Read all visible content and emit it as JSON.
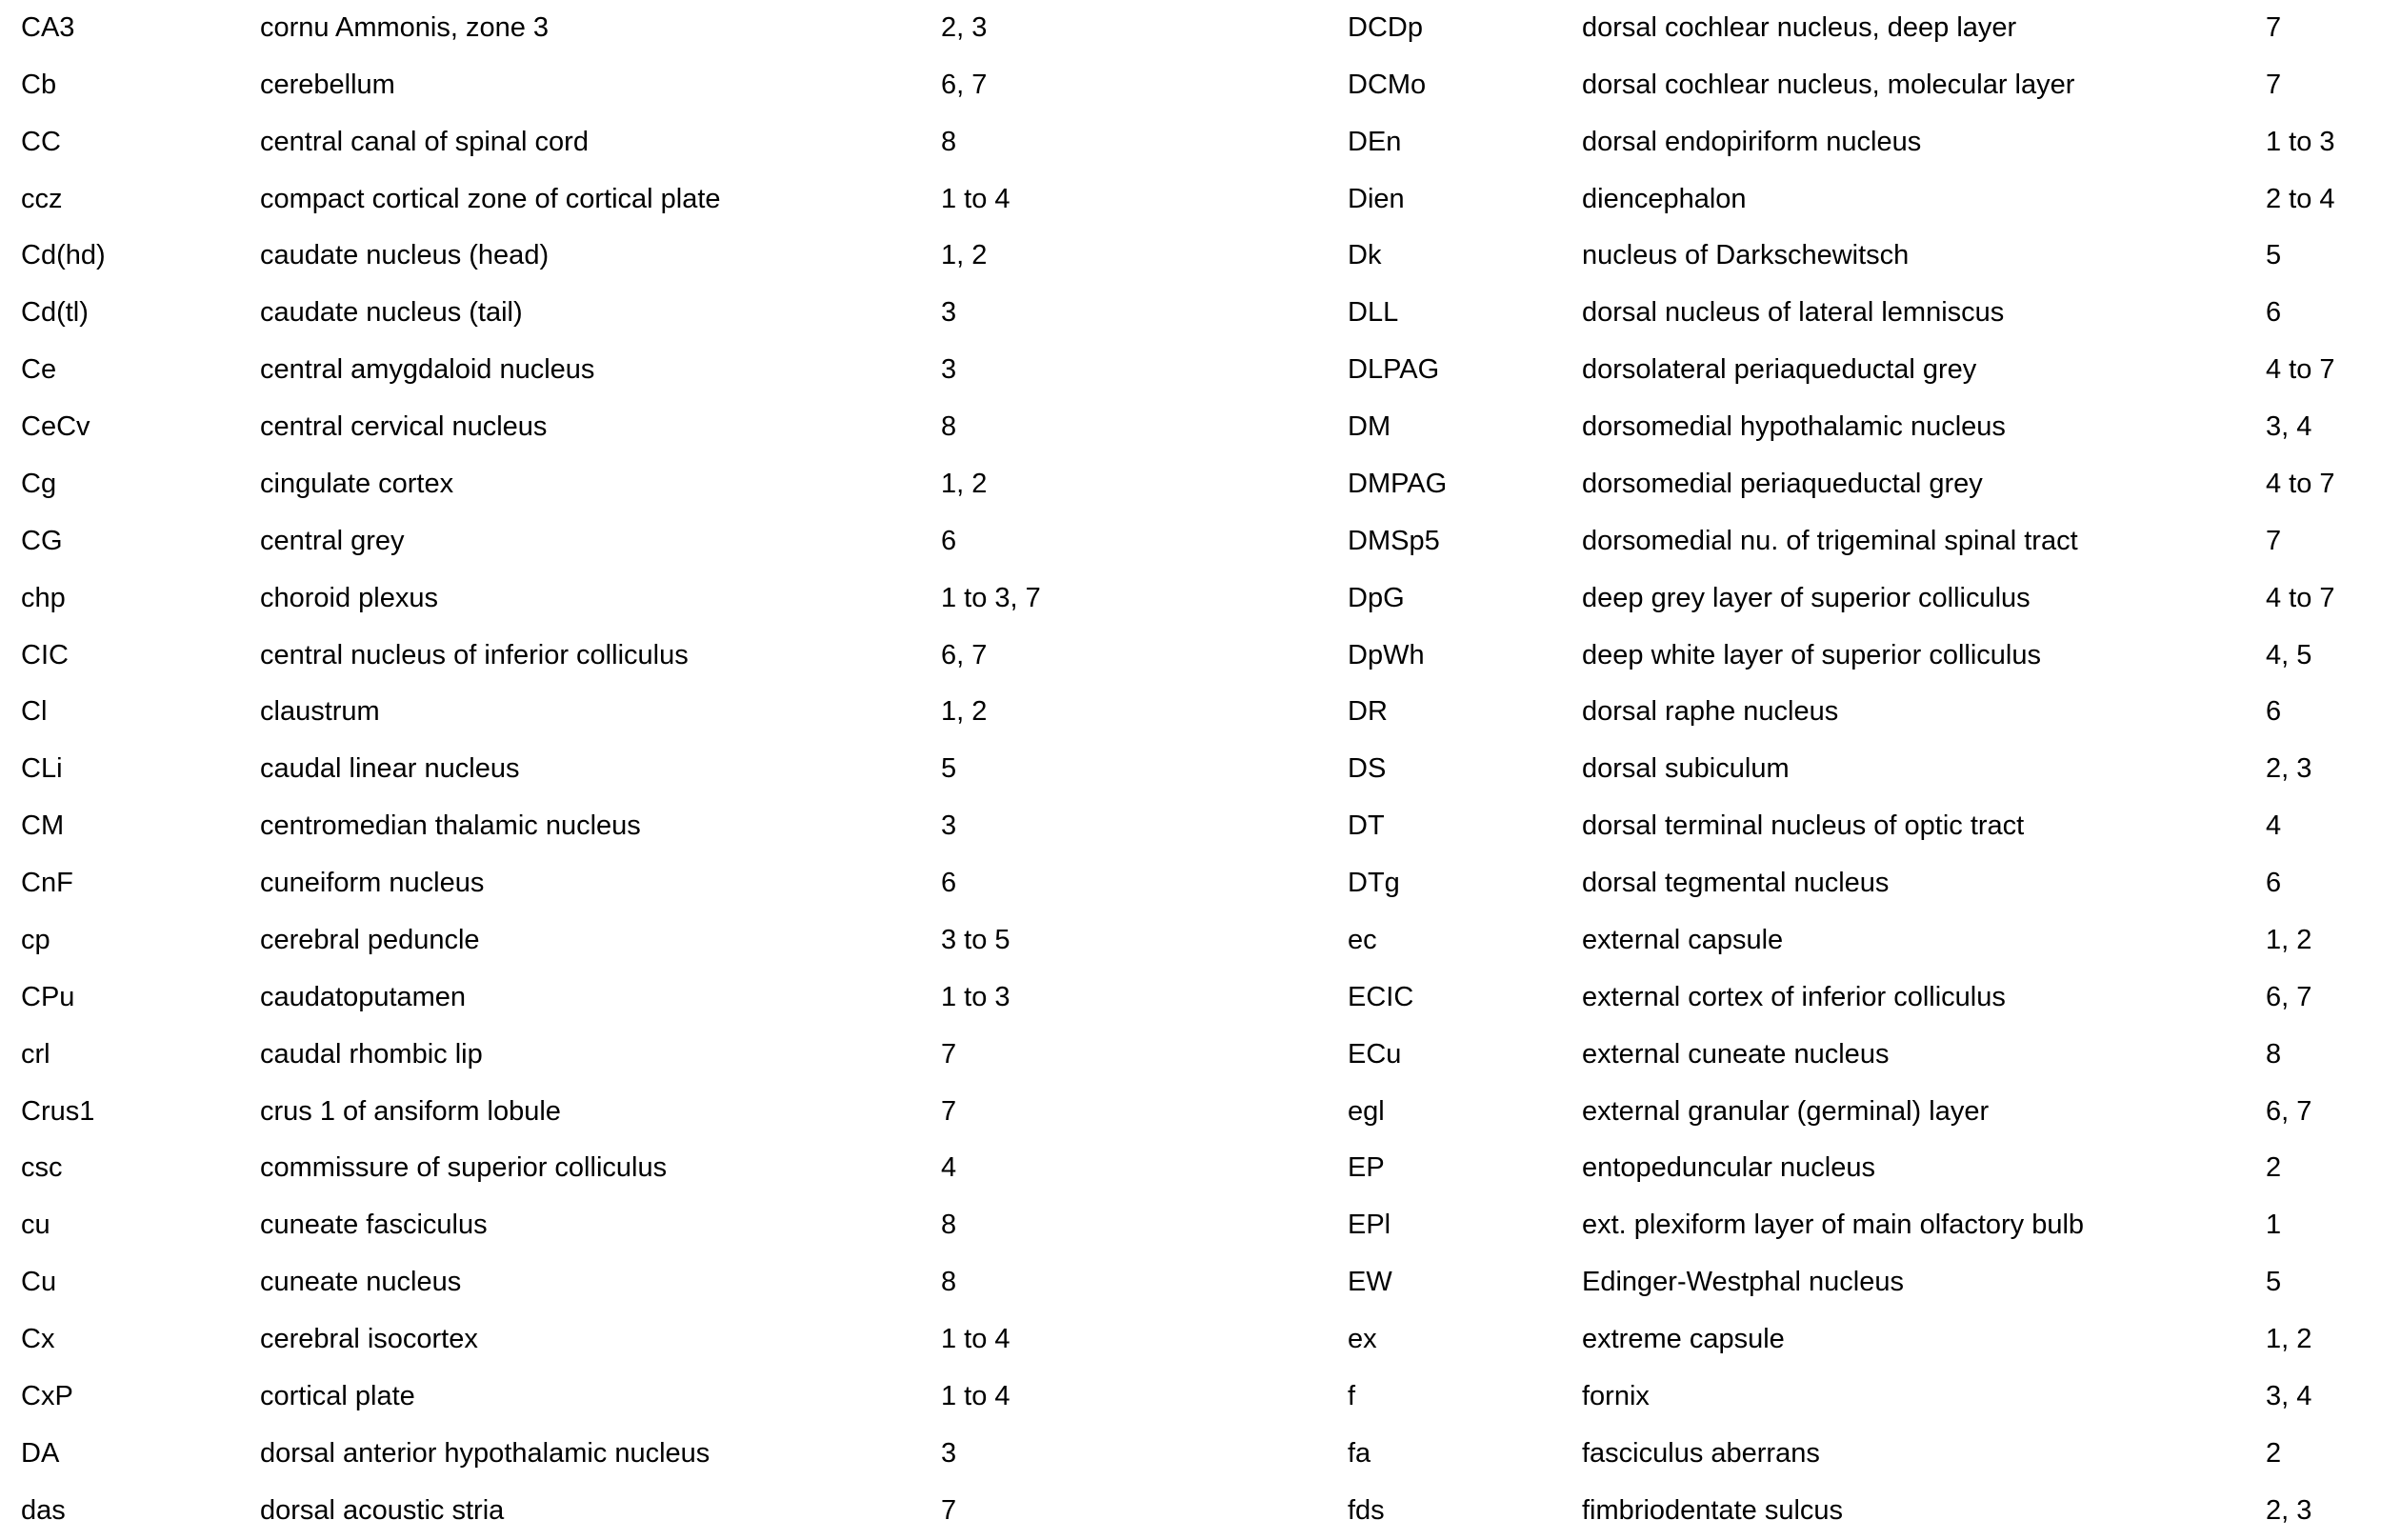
{
  "page": {
    "background_color": "#ffffff",
    "text_color": "#000000",
    "description": "Index of abbreviations: abbreviation, structure name, plate numbers"
  },
  "columns": [
    {
      "rows": [
        {
          "abbr": "CA3",
          "name": "cornu Ammonis, zone 3",
          "plates": "2, 3"
        },
        {
          "abbr": "Cb",
          "name": "cerebellum",
          "plates": "6, 7"
        },
        {
          "abbr": "CC",
          "name": "central canal of spinal cord",
          "plates": "8"
        },
        {
          "abbr": "ccz",
          "name": "compact cortical zone of cortical plate",
          "plates": "1 to 4"
        },
        {
          "abbr": "Cd(hd)",
          "name": "caudate nucleus (head)",
          "plates": "1, 2"
        },
        {
          "abbr": "Cd(tl)",
          "name": "caudate nucleus (tail)",
          "plates": "3"
        },
        {
          "abbr": "Ce",
          "name": "central amygdaloid nucleus",
          "plates": "3"
        },
        {
          "abbr": "CeCv",
          "name": "central cervical nucleus",
          "plates": "8"
        },
        {
          "abbr": "Cg",
          "name": "cingulate cortex",
          "plates": "1, 2"
        },
        {
          "abbr": "CG",
          "name": "central grey",
          "plates": "6"
        },
        {
          "abbr": "chp",
          "name": "choroid plexus",
          "plates": "1 to 3, 7"
        },
        {
          "abbr": "CIC",
          "name": "central nucleus of inferior colliculus",
          "plates": "6, 7"
        },
        {
          "abbr": "Cl",
          "name": "claustrum",
          "plates": "1, 2"
        },
        {
          "abbr": "CLi",
          "name": "caudal linear nucleus",
          "plates": "5"
        },
        {
          "abbr": "CM",
          "name": "centromedian thalamic nucleus",
          "plates": "3"
        },
        {
          "abbr": "CnF",
          "name": "cuneiform nucleus",
          "plates": "6"
        },
        {
          "abbr": "cp",
          "name": "cerebral peduncle",
          "plates": "3 to 5"
        },
        {
          "abbr": "CPu",
          "name": "caudatoputamen",
          "plates": "1 to 3"
        },
        {
          "abbr": "crl",
          "name": "caudal rhombic lip",
          "plates": "7"
        },
        {
          "abbr": "Crus1",
          "name": "crus 1 of ansiform lobule",
          "plates": "7"
        },
        {
          "abbr": "csc",
          "name": "commissure of superior colliculus",
          "plates": "4"
        },
        {
          "abbr": "cu",
          "name": "cuneate fasciculus",
          "plates": "8"
        },
        {
          "abbr": "Cu",
          "name": "cuneate nucleus",
          "plates": "8"
        },
        {
          "abbr": "Cx",
          "name": "cerebral isocortex",
          "plates": "1 to 4"
        },
        {
          "abbr": "CxP",
          "name": "cortical plate",
          "plates": "1 to 4"
        },
        {
          "abbr": "DA",
          "name": "dorsal anterior hypothalamic nucleus",
          "plates": "3"
        },
        {
          "abbr": "das",
          "name": "dorsal acoustic stria",
          "plates": "7"
        }
      ]
    },
    {
      "rows": [
        {
          "abbr": "DCDp",
          "name": "dorsal cochlear nucleus, deep layer",
          "plates": "7"
        },
        {
          "abbr": "DCMo",
          "name": "dorsal cochlear nucleus, molecular layer",
          "plates": "7"
        },
        {
          "abbr": "DEn",
          "name": "dorsal endopiriform nucleus",
          "plates": "1 to 3"
        },
        {
          "abbr": "Dien",
          "name": "diencephalon",
          "plates": "2 to 4"
        },
        {
          "abbr": "Dk",
          "name": "nucleus of Darkschewitsch",
          "plates": "5"
        },
        {
          "abbr": "DLL",
          "name": "dorsal nucleus of lateral lemniscus",
          "plates": "6"
        },
        {
          "abbr": "DLPAG",
          "name": "dorsolateral periaqueductal grey",
          "plates": "4 to 7"
        },
        {
          "abbr": "DM",
          "name": "dorsomedial hypothalamic nucleus",
          "plates": "3, 4"
        },
        {
          "abbr": "DMPAG",
          "name": "dorsomedial periaqueductal grey",
          "plates": "4 to 7"
        },
        {
          "abbr": "DMSp5",
          "name": "dorsomedial nu. of trigeminal spinal tract",
          "plates": "7"
        },
        {
          "abbr": "DpG",
          "name": "deep grey layer of superior colliculus",
          "plates": "4 to 7"
        },
        {
          "abbr": "DpWh",
          "name": "deep white layer of superior colliculus",
          "plates": "4, 5"
        },
        {
          "abbr": "DR",
          "name": "dorsal raphe nucleus",
          "plates": "6"
        },
        {
          "abbr": "DS",
          "name": "dorsal subiculum",
          "plates": "2, 3"
        },
        {
          "abbr": "DT",
          "name": "dorsal terminal nucleus of optic tract",
          "plates": "4"
        },
        {
          "abbr": "DTg",
          "name": "dorsal tegmental nucleus",
          "plates": "6"
        },
        {
          "abbr": "ec",
          "name": "external capsule",
          "plates": "1, 2"
        },
        {
          "abbr": "ECIC",
          "name": "external cortex of inferior colliculus",
          "plates": "6, 7"
        },
        {
          "abbr": "ECu",
          "name": "external cuneate nucleus",
          "plates": "8"
        },
        {
          "abbr": "egl",
          "name": "external granular (germinal) layer",
          "plates": "6, 7"
        },
        {
          "abbr": "EP",
          "name": "entopeduncular nucleus",
          "plates": "2"
        },
        {
          "abbr": "EPl",
          "name": "ext. plexiform layer of main olfactory bulb",
          "plates": "1"
        },
        {
          "abbr": "EW",
          "name": "Edinger-Westphal nucleus",
          "plates": "5"
        },
        {
          "abbr": "ex",
          "name": "extreme capsule",
          "plates": "1, 2"
        },
        {
          "abbr": "f",
          "name": "fornix",
          "plates": "3, 4"
        },
        {
          "abbr": "fa",
          "name": "fasciculus aberrans",
          "plates": "2"
        },
        {
          "abbr": "fds",
          "name": "fimbriodentate sulcus",
          "plates": "2, 3"
        }
      ]
    }
  ]
}
